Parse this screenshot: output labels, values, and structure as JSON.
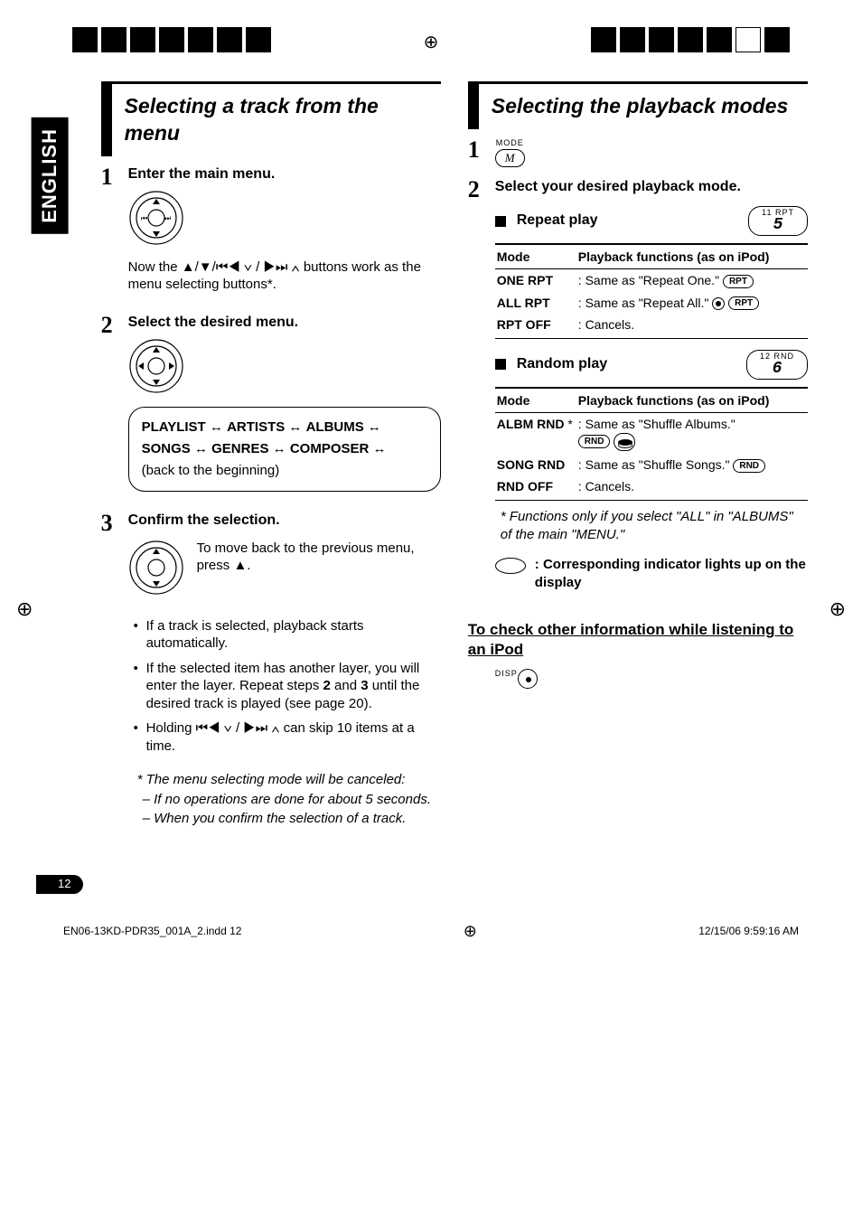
{
  "page": {
    "language_tab": "ENGLISH",
    "page_number": "12",
    "footer_left": "EN06-13KD-PDR35_001A_2.indd   12",
    "footer_right": "12/15/06   9:59:16 AM"
  },
  "left": {
    "section_title": "Selecting a track from the menu",
    "step1": {
      "num": "1",
      "title": "Enter the main menu.",
      "after_text_1": "Now the ▲/▼/",
      "after_text_2": " buttons work as the menu selecting buttons*."
    },
    "step2": {
      "num": "2",
      "title": "Select the desired menu.",
      "flow_items": [
        "PLAYLIST",
        "ARTISTS",
        "ALBUMS",
        "SONGS",
        "GENRES",
        "COMPOSER"
      ],
      "flow_tail": "(back to the beginning)"
    },
    "step3": {
      "num": "3",
      "title": "Confirm the selection.",
      "side_text": "To move back to the previous menu, press ▲.",
      "bullets": [
        "If a track is selected, playback starts automatically.",
        "If the selected item has another layer, you will enter the layer. Repeat steps 2 and 3 until the desired track is played (see page 20).",
        "Holding ⏮◀ ∨ / ▶⏭ ∧ can skip 10 items at a time."
      ],
      "ast_head": "*  The menu selecting mode will be canceled:",
      "ast_items": [
        "–  If no operations are done for about 5 seconds.",
        "–  When you confirm the selection of a track."
      ]
    }
  },
  "right": {
    "section_title": "Selecting the playback modes",
    "step1": {
      "num": "1",
      "mode_label": "MODE",
      "mode_letter": "M"
    },
    "step2": {
      "num": "2",
      "title": "Select your desired playback mode.",
      "repeat": {
        "title": "Repeat play",
        "lcd_small": "11  RPT",
        "lcd_big": "5",
        "col1": "Mode",
        "col2": "Playback functions (as on iPod)",
        "rows": [
          {
            "mode": "ONE RPT",
            "desc": ":  Same as \"Repeat One.\"",
            "pills": [
              "RPT"
            ]
          },
          {
            "mode": "ALL RPT",
            "desc": ":  Same as \"Repeat All.\"",
            "disc": true,
            "pills": [
              "RPT"
            ]
          },
          {
            "mode": "RPT OFF",
            "desc": ":  Cancels.",
            "pills": []
          }
        ]
      },
      "random": {
        "title": "Random play",
        "lcd_small": "12  RND",
        "lcd_big": "6",
        "col1": "Mode",
        "col2": "Playback functions (as on iPod)",
        "rows": [
          {
            "mode": "ALBM RND",
            "sup": "*",
            "desc": ":  Same as \"Shuffle Albums.\"",
            "pills": [
              "RND"
            ],
            "discpill": true
          },
          {
            "mode": "SONG RND",
            "desc": ":  Same as \"Shuffle Songs.\"",
            "pills": [
              "RND"
            ]
          },
          {
            "mode": "RND OFF",
            "desc": ":  Cancels.",
            "pills": []
          }
        ]
      },
      "footnote": "*  Functions only if you select \"ALL\" in \"ALBUMS\" of the main \"MENU.\"",
      "indicator_note": ":  Corresponding indicator lights up on the display"
    },
    "subsection_title": "To check other information while listening to an iPod",
    "disp_label": "DISP"
  }
}
